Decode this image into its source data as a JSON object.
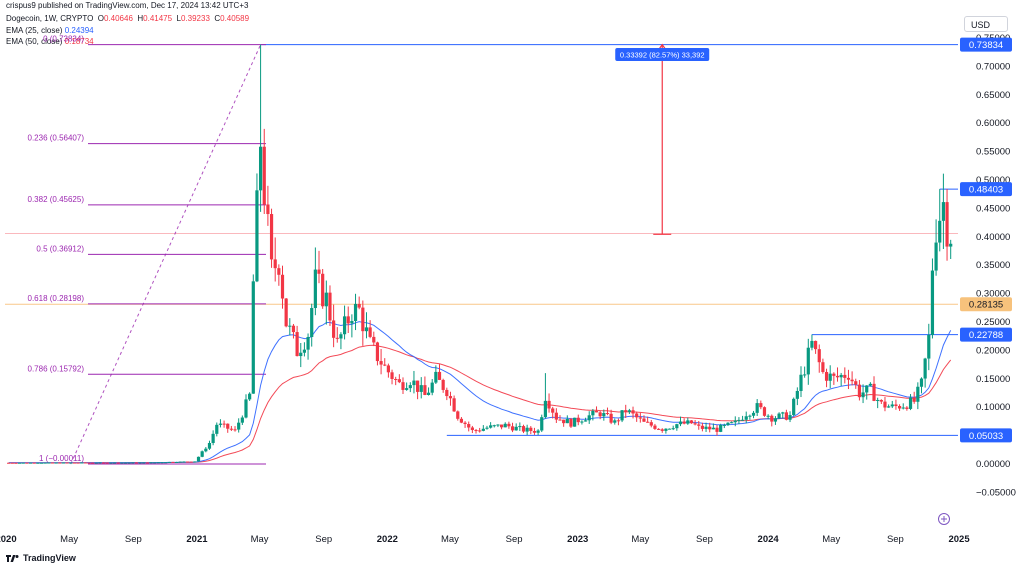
{
  "header": {
    "publisher": "crispus9 published on TradingView.com, Dec 17, 2024 13:42 UTC+3",
    "symbol": "Dogecoin, 1W, CRYPTO",
    "open_label": "O",
    "open": "0.40646",
    "high_label": "H",
    "high": "0.41475",
    "low_label": "L",
    "low": "0.39233",
    "close_label": "C",
    "close": "0.40589",
    "ema25_label": "EMA (25, close)",
    "ema25_value": "0.24394",
    "ema50_label": "EMA (50, close)",
    "ema50_value": "0.18734",
    "currency": "USD"
  },
  "footer": {
    "brand": "TradingView"
  },
  "colors": {
    "up": "#089981",
    "down": "#f23645",
    "ema25": "#2962ff",
    "ema50": "#f23645",
    "fib": "#9c27b0",
    "level": "#2962ff",
    "badge": "#2962ff",
    "fib_badge": "#f7c27c"
  },
  "chart_data": {
    "type": "candlestick",
    "y_axis": {
      "min": -0.06,
      "max": 0.76,
      "ticks": [
        "0.75000",
        "0.70000",
        "0.65000",
        "0.60000",
        "0.55000",
        "0.50000",
        "0.45000",
        "0.40000",
        "0.35000",
        "0.30000",
        "0.25000",
        "0.20000",
        "0.15000",
        "0.10000",
        "0.05000",
        "0.00000",
        "−0.05000"
      ]
    },
    "x_axis": {
      "range": [
        "2019-12-30",
        "2024-12-30"
      ],
      "ticks": [
        {
          "label": "2020",
          "date": "2020-01-01",
          "bold": true
        },
        {
          "label": "May",
          "date": "2020-05-01",
          "bold": false
        },
        {
          "label": "Sep",
          "date": "2020-09-01",
          "bold": false
        },
        {
          "label": "2021",
          "date": "2021-01-01",
          "bold": true
        },
        {
          "label": "May",
          "date": "2021-05-01",
          "bold": false
        },
        {
          "label": "Sep",
          "date": "2021-09-01",
          "bold": false
        },
        {
          "label": "2022",
          "date": "2022-01-01",
          "bold": true
        },
        {
          "label": "May",
          "date": "2022-05-01",
          "bold": false
        },
        {
          "label": "Sep",
          "date": "2022-09-01",
          "bold": false
        },
        {
          "label": "2023",
          "date": "2023-01-01",
          "bold": true
        },
        {
          "label": "May",
          "date": "2023-05-01",
          "bold": false
        },
        {
          "label": "Sep",
          "date": "2023-09-01",
          "bold": false
        },
        {
          "label": "2024",
          "date": "2024-01-01",
          "bold": true
        },
        {
          "label": "May",
          "date": "2024-05-01",
          "bold": false
        },
        {
          "label": "Sep",
          "date": "2024-09-01",
          "bold": false
        },
        {
          "label": "2025",
          "date": "2025-01-01",
          "bold": true
        }
      ]
    },
    "price_path": [
      [
        "2020-01-06",
        0.0022
      ],
      [
        "2020-06-01",
        0.0025
      ],
      [
        "2020-10-01",
        0.0026
      ],
      [
        "2020-12-28",
        0.0047
      ],
      [
        "2021-01-25",
        0.037
      ],
      [
        "2021-02-08",
        0.07
      ],
      [
        "2021-03-15",
        0.058
      ],
      [
        "2021-04-12",
        0.12
      ],
      [
        "2021-04-19",
        0.32
      ],
      [
        "2021-05-03",
        0.57
      ],
      [
        "2021-05-10",
        0.48
      ],
      [
        "2021-05-24",
        0.34
      ],
      [
        "2021-06-07",
        0.36
      ],
      [
        "2021-06-21",
        0.25
      ],
      [
        "2021-07-12",
        0.2
      ],
      [
        "2021-08-02",
        0.23
      ],
      [
        "2021-08-16",
        0.32
      ],
      [
        "2021-09-06",
        0.29
      ],
      [
        "2021-09-27",
        0.21
      ],
      [
        "2021-10-25",
        0.27
      ],
      [
        "2021-11-08",
        0.27
      ],
      [
        "2021-11-29",
        0.21
      ],
      [
        "2021-12-27",
        0.17
      ],
      [
        "2022-01-24",
        0.14
      ],
      [
        "2022-02-14",
        0.15
      ],
      [
        "2022-03-14",
        0.12
      ],
      [
        "2022-04-04",
        0.15
      ],
      [
        "2022-04-25",
        0.13
      ],
      [
        "2022-05-16",
        0.085
      ],
      [
        "2022-06-13",
        0.058
      ],
      [
        "2022-07-11",
        0.064
      ],
      [
        "2022-08-15",
        0.068
      ],
      [
        "2022-09-19",
        0.06
      ],
      [
        "2022-10-17",
        0.058
      ],
      [
        "2022-10-31",
        0.12
      ],
      [
        "2022-11-21",
        0.082
      ],
      [
        "2022-12-19",
        0.072
      ],
      [
        "2023-01-16",
        0.083
      ],
      [
        "2023-02-13",
        0.09
      ],
      [
        "2023-03-13",
        0.073
      ],
      [
        "2023-04-03",
        0.095
      ],
      [
        "2023-05-08",
        0.072
      ],
      [
        "2023-06-12",
        0.062
      ],
      [
        "2023-07-10",
        0.07
      ],
      [
        "2023-08-07",
        0.072
      ],
      [
        "2023-08-21",
        0.064
      ],
      [
        "2023-09-25",
        0.061
      ],
      [
        "2023-10-30",
        0.072
      ],
      [
        "2023-11-20",
        0.09
      ],
      [
        "2023-12-11",
        0.1
      ],
      [
        "2024-01-08",
        0.082
      ],
      [
        "2024-02-12",
        0.085
      ],
      [
        "2024-03-04",
        0.15
      ],
      [
        "2024-03-25",
        0.21
      ],
      [
        "2024-04-15",
        0.16
      ],
      [
        "2024-05-06",
        0.15
      ],
      [
        "2024-06-03",
        0.16
      ],
      [
        "2024-06-24",
        0.125
      ],
      [
        "2024-07-15",
        0.13
      ],
      [
        "2024-08-05",
        0.105
      ],
      [
        "2024-08-26",
        0.1
      ],
      [
        "2024-09-16",
        0.104
      ],
      [
        "2024-10-07",
        0.11
      ],
      [
        "2024-10-21",
        0.14
      ],
      [
        "2024-11-04",
        0.22
      ],
      [
        "2024-11-11",
        0.35
      ],
      [
        "2024-11-18",
        0.42
      ],
      [
        "2024-11-25",
        0.44
      ],
      [
        "2024-12-02",
        0.46
      ],
      [
        "2024-12-09",
        0.42
      ],
      [
        "2024-12-16",
        0.406
      ]
    ],
    "ema25": {
      "name": "EMA (25, close)",
      "last": 0.24394
    },
    "ema50": {
      "name": "EMA (50, close)",
      "last": 0.18734
    },
    "fibonacci": {
      "from": {
        "date": "2020-05-04",
        "price": -0.00011
      },
      "to": {
        "date": "2021-05-03",
        "price": 0.73834
      },
      "levels": [
        {
          "ratio": "0",
          "price": 0.73834,
          "label": "0 (0.73834)"
        },
        {
          "ratio": "0.236",
          "price": 0.56407,
          "label": "0.236 (0.56407)"
        },
        {
          "ratio": "0.382",
          "price": 0.45625,
          "label": "0.382 (0.45625)"
        },
        {
          "ratio": "0.5",
          "price": 0.36912,
          "label": "0.5 (0.36912)"
        },
        {
          "ratio": "0.618",
          "price": 0.28198,
          "label": "0.618 (0.28198)"
        },
        {
          "ratio": "0.786",
          "price": 0.15792,
          "label": "0.786 (0.15792)"
        },
        {
          "ratio": "1",
          "price": -0.00011,
          "label": "1 (−0.00011)"
        }
      ]
    },
    "horizontal_levels": [
      {
        "price": 0.73834,
        "label": "0.73834",
        "from": "2021-05-03"
      },
      {
        "price": 0.48403,
        "label": "0.48403",
        "from": "2024-11-25"
      },
      {
        "price": 0.22788,
        "label": "0.22788",
        "from": "2024-03-25"
      },
      {
        "price": 0.05033,
        "label": "0.05033",
        "from": "2022-04-25"
      },
      {
        "price": 0.28135,
        "label": "0.28135",
        "from": "2019-12-30",
        "style": "fib"
      },
      {
        "price": 0.40589,
        "label": "",
        "from": "2019-12-30",
        "style": "current"
      }
    ],
    "measure": {
      "date": "2023-06-12",
      "from_price": 0.40442,
      "to_price": 0.73834,
      "label": "0.33392 (82.57%) 33,392"
    }
  }
}
